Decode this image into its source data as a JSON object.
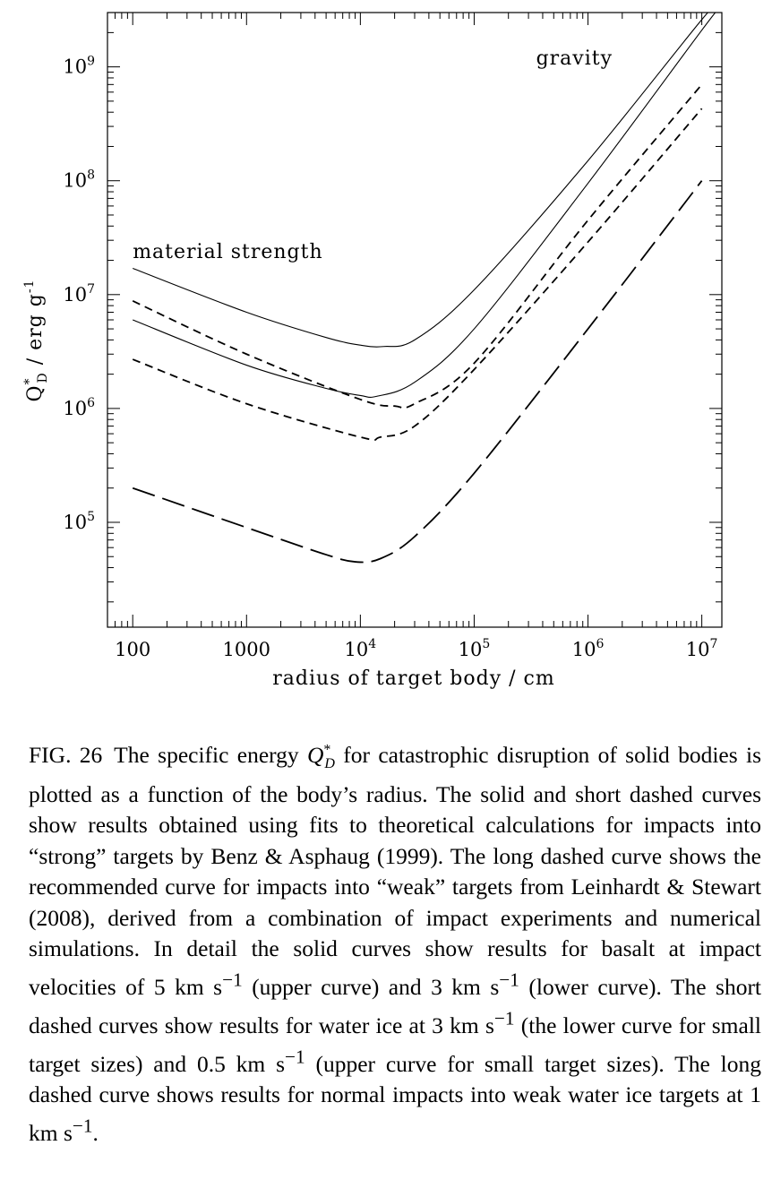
{
  "chart_data": {
    "type": "line",
    "xlabel": "radius of target body / cm",
    "ylabel_html": "Q<tspan font-size='14' dy='-9'>*</tspan><tspan font-size='14' dx='-6' dy='15'>D</tspan><tspan dy='-6'> / erg g</tspan><tspan font-size='14' dy='-9'>-1</tspan>",
    "x_scale": "log",
    "y_scale": "log",
    "xlim": [
      60,
      15000000
    ],
    "ylim": [
      12000,
      3000000000
    ],
    "x_ticks": [
      {
        "value": 100,
        "base": "100",
        "exp": ""
      },
      {
        "value": 1000,
        "base": "1000",
        "exp": ""
      },
      {
        "value": 10000,
        "base": "10",
        "exp": "4"
      },
      {
        "value": 100000,
        "base": "10",
        "exp": "5"
      },
      {
        "value": 1000000,
        "base": "10",
        "exp": "6"
      },
      {
        "value": 10000000,
        "base": "10",
        "exp": "7"
      }
    ],
    "y_ticks": [
      {
        "value": 100000,
        "base": "10",
        "exp": "5"
      },
      {
        "value": 1000000,
        "base": "10",
        "exp": "6"
      },
      {
        "value": 10000000,
        "base": "10",
        "exp": "7"
      },
      {
        "value": 100000000,
        "base": "10",
        "exp": "8"
      },
      {
        "value": 1000000000,
        "base": "10",
        "exp": "9"
      }
    ],
    "annotations": [
      {
        "text": "material strength",
        "x": 100,
        "y": 21000000,
        "anchor": "start"
      },
      {
        "text": "gravity",
        "x": 350000,
        "y": 1050000000,
        "anchor": "start"
      }
    ],
    "series": [
      {
        "style": "solid",
        "x": [
          100,
          1000,
          5000,
          10000,
          16000,
          30000,
          100000,
          1000000,
          10000000,
          15000000
        ],
        "y": [
          17000000,
          7000000,
          4200000,
          3600000,
          3500000,
          4000000,
          11000000,
          150000000,
          2600000000,
          3900000000
        ]
      },
      {
        "style": "solid",
        "x": [
          100,
          1000,
          5000,
          10000,
          14000,
          30000,
          100000,
          1000000,
          10000000,
          15000000
        ],
        "y": [
          6000000,
          2400000,
          1500000,
          1300000,
          1280000,
          1700000,
          5000000,
          95000000,
          2100000000,
          3500000000
        ]
      },
      {
        "style": "short-dash",
        "x": [
          100,
          1000,
          10000,
          20000,
          30000,
          100000,
          1000000,
          10000000
        ],
        "y": [
          8800000,
          3000000,
          1200000,
          1050000,
          1100000,
          2500000,
          45000000,
          700000000
        ]
      },
      {
        "style": "short-dash",
        "x": [
          100,
          1000,
          10000,
          15000,
          30000,
          100000,
          1000000,
          10000000
        ],
        "y": [
          2700000,
          1100000,
          560000,
          560000,
          700000,
          2200000,
          29000000,
          430000000
        ]
      },
      {
        "style": "long-dash",
        "x": [
          100,
          1000,
          5000,
          9000,
          15000,
          30000,
          100000,
          1000000,
          10000000
        ],
        "y": [
          200000,
          90000,
          52000,
          45000,
          48000,
          75000,
          270000,
          5000000,
          100000000
        ]
      }
    ]
  },
  "caption": {
    "prefix": "FIG. 26",
    "html": "The specific energy <i>Q</i><sup style='font-size:16px'>*</sup><sub style='font-size:16px;margin-left:-7px'><i>D</i></sub> for catastrophic disruption of solid bodies is plotted as a function of the body’s radius. The solid and short dashed curves show results obtained using fits to theoretical calculations for impacts into “strong” targets by Benz &amp; Asphaug (1999). The long dashed curve shows the recommended curve for impacts into “weak” targets from Leinhardt &amp; Stewart (2008), derived from a combination of impact experiments and numerical simulations. In detail the solid curves show results for basalt at impact velocities of 5 km s<sup>−1</sup> (upper curve) and 3 km s<sup>−1</sup> (lower curve). The short dashed curves show results for water ice at 3 km s<sup>−1</sup> (the lower curve for small target sizes) and 0.5 km s<sup>−1</sup> (upper curve for small target sizes). The long dashed curve shows results for normal impacts into weak water ice targets at 1 km s<sup>−1</sup>."
  }
}
